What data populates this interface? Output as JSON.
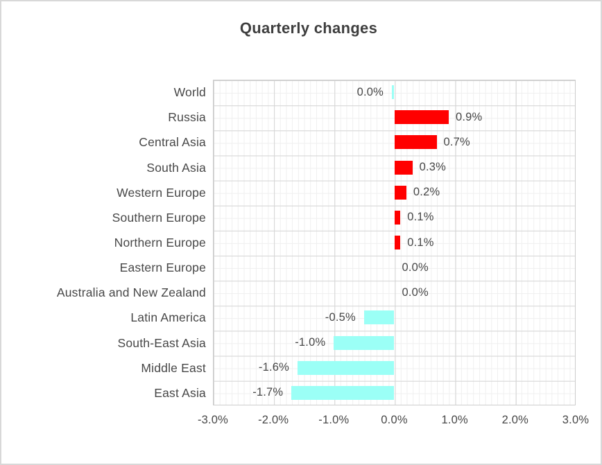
{
  "chart_data": {
    "type": "bar",
    "orientation": "horizontal",
    "title": "Quarterly changes",
    "categories": [
      "World",
      "Russia",
      "Central Asia",
      "South Asia",
      "Western Europe",
      "Southern Europe",
      "Northern Europe",
      "Eastern Europe",
      "Australia and New Zealand",
      "Latin America",
      "South-East Asia",
      "Middle East",
      "East Asia"
    ],
    "values": [
      -0.04,
      0.9,
      0.7,
      0.3,
      0.2,
      0.1,
      0.1,
      0.0,
      0.0,
      -0.5,
      -1.0,
      -1.6,
      -1.7
    ],
    "value_labels": [
      "0.0%",
      "0.9%",
      "0.7%",
      "0.3%",
      "0.2%",
      "0.1%",
      "0.1%",
      "0.0%",
      "0.0%",
      "-0.5%",
      "-1.0%",
      "-1.6%",
      "-1.7%"
    ],
    "x_ticks": [
      "-3.0%",
      "-2.0%",
      "-1.0%",
      "0.0%",
      "1.0%",
      "2.0%",
      "3.0%"
    ],
    "xlim": [
      -3,
      3
    ],
    "grid": "major and minor, both axes",
    "legend": "none",
    "colors": {
      "positive_bar": "#FF0000",
      "negative_bar": "#9BFFF6",
      "major_grid": "#D5D5D5",
      "minor_grid": "#EFEFEF",
      "text": "#474747",
      "title_text": "#3E3E3E"
    }
  }
}
